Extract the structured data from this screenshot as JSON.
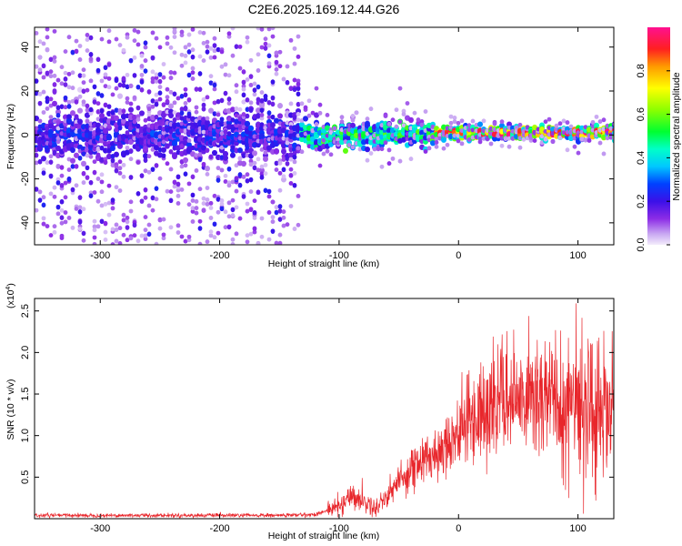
{
  "title": "C2E6.2025.169.12.44.G26",
  "colorbar": {
    "label": "Normalized spectral amplitude",
    "range": [
      0,
      1
    ],
    "ticks": [
      "0.0",
      "0.2",
      "0.4",
      "0.6",
      "0.8"
    ],
    "tick_values": [
      0.0,
      0.2,
      0.4,
      0.6,
      0.8
    ]
  },
  "chart_data": [
    {
      "type": "heatmap",
      "xlabel": "Height of straight line (km)",
      "ylabel": "Frequency (Hz)",
      "xlim": [
        -355,
        130
      ],
      "ylim": [
        -50,
        49
      ],
      "xticks": [
        -300,
        -200,
        -100,
        0,
        100
      ],
      "xtick_labels": [
        "-300",
        "-200",
        "-100",
        "0",
        "100"
      ],
      "yticks": [
        -40,
        -20,
        0,
        20,
        40
      ],
      "ytick_labels": [
        "-40",
        "-20",
        "0",
        "20",
        "40"
      ],
      "grid": false,
      "description_of_values": [
        {
          "x_range": [
            -355,
            -135
          ],
          "freq_center": 0,
          "freq_spread": 12,
          "amplitude_max": 0.3
        },
        {
          "x_range": [
            -135,
            -20
          ],
          "freq_center": 0,
          "freq_spread": 6,
          "amplitude_max": 0.6
        },
        {
          "x_range": [
            -20,
            130
          ],
          "freq_center": 1,
          "freq_spread": 3,
          "amplitude_max": 1.0
        }
      ]
    },
    {
      "type": "line",
      "xlabel": "Height of straight line (km)",
      "ylabel": "SNR (10 * v/v)",
      "ymultiplier": "(x10",
      "ymultiplier_exp": "4",
      "ymultiplier_close": ")",
      "xlim": [
        -355,
        130
      ],
      "ylim": [
        0,
        2.65
      ],
      "xticks": [
        -300,
        -200,
        -100,
        0,
        100
      ],
      "xtick_labels": [
        "-300",
        "-200",
        "-100",
        "0",
        "100"
      ],
      "yticks": [
        0.5,
        1.0,
        1.5,
        2.0,
        2.5
      ],
      "ytick_labels": [
        "0.5",
        "1.0",
        "1.5",
        "2.0",
        "2.5"
      ],
      "grid": false,
      "series": [
        {
          "color": "#e8262b",
          "x": [
            -355,
            -300,
            -200,
            -150,
            -120,
            -100,
            -90,
            -80,
            -70,
            -60,
            -50,
            -40,
            -30,
            -20,
            -10,
            0,
            10,
            20,
            30,
            40,
            50,
            60,
            70,
            80,
            90,
            100,
            110,
            120,
            130
          ],
          "y": [
            0.04,
            0.04,
            0.04,
            0.04,
            0.05,
            0.15,
            0.28,
            0.22,
            0.12,
            0.28,
            0.45,
            0.6,
            0.68,
            0.78,
            0.92,
            1.05,
            1.2,
            1.3,
            1.38,
            1.42,
            1.42,
            1.45,
            1.48,
            1.45,
            1.4,
            1.38,
            1.35,
            1.35,
            1.32
          ]
        }
      ]
    }
  ]
}
